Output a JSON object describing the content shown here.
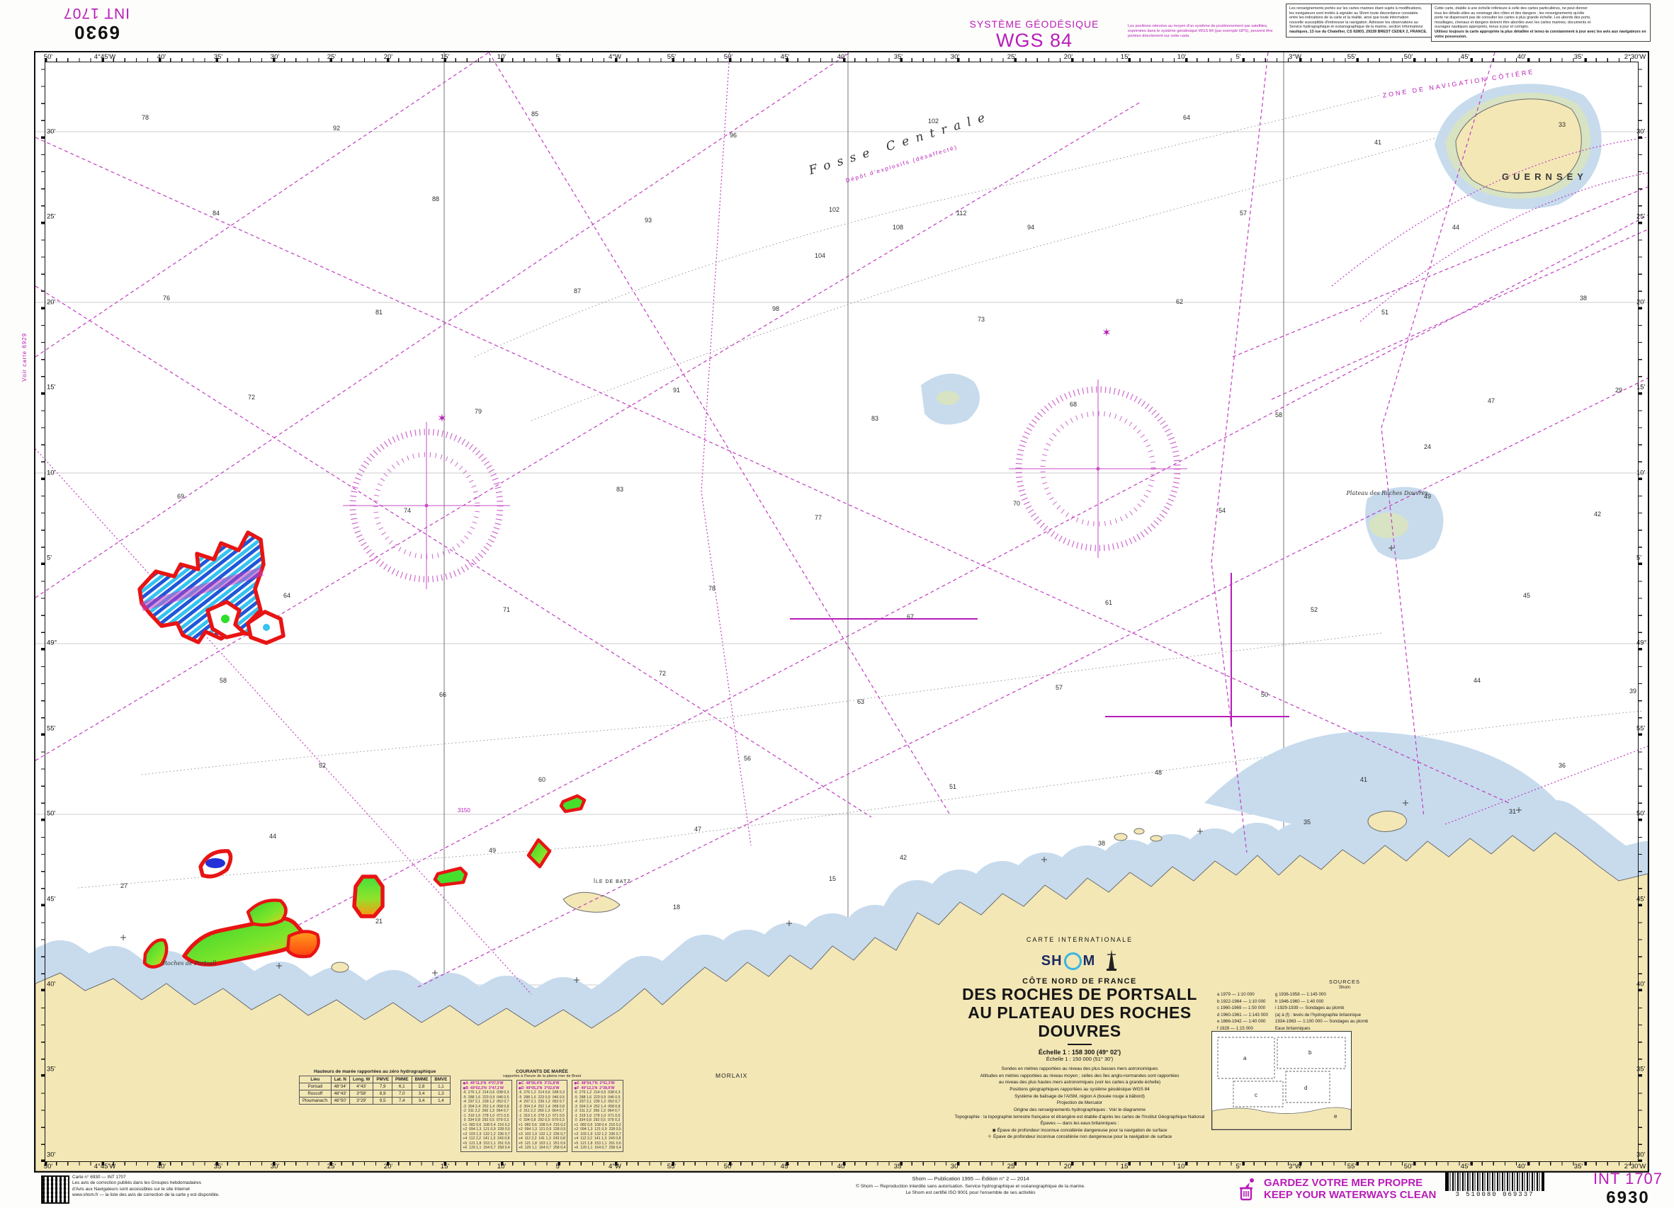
{
  "colors": {
    "magenta": "#b81cb8",
    "land": "#f3e7b6",
    "shallow": "#c7dbed",
    "intertidal": "#d7e3c2",
    "patch_red": "#e81414"
  },
  "sheet": {
    "corner": {
      "number": "6930",
      "int": "INT 1707"
    },
    "geodesy": {
      "label": "SYSTÈME GÉODÉSIQUE",
      "value": "WGS 84",
      "note": "Les positions relevées au moyen d'un système de positionnement par satellites, exprimées dans le système géodésique WGS 84 (par exemple GPS), peuvent être portées directement sur cette carte."
    },
    "margin_note_left": "Voir carte 6929",
    "cautions": {
      "box1": [
        "Les renseignements portés sur les cartes marines étant sujets à modifications,",
        "les navigateurs sont invités à signaler au Shom toute discordance constatée",
        "entre les indications de la carte et la réalité, ainsi que toute information",
        "nouvelle susceptible d'intéresser la navigation. Adresser les observations au",
        "Service hydrographique et océanographique de la marine, section Informations",
        "nautiques, 13 rue du Chatellier, CS 92803, 29228 BREST CEDEX 2, FRANCE."
      ],
      "box2": [
        "Cette carte, établie à une échelle inférieure à celle des cartes particulières, ne peut donner",
        "tous les détails utiles au voisinage des côtes et des dangers ; les renseignements qu'elle",
        "porte ne dispensent pas de consulter les cartes à plus grande échelle. Les abords des ports,",
        "mouillages, chenaux et dangers doivent être abordés avec les cartes marines, documents et",
        "ouvrages nautiques appropriés, tenus à jour et corrigés.",
        "Utilisez toujours la carte appropriée la plus détaillée et tenez-la constamment à jour avec les avis aux navigateurs en votre possession."
      ]
    }
  },
  "borders": {
    "lons": [
      "50'",
      "4°45'W",
      "40'",
      "35'",
      "30'",
      "25'",
      "20'",
      "15'",
      "10'",
      "5'",
      "4°W",
      "55'",
      "50'",
      "45'",
      "40'",
      "35'",
      "30'",
      "25'",
      "20'",
      "15'",
      "10'",
      "5'",
      "3°W",
      "55'",
      "50'",
      "45'",
      "40'",
      "35'",
      "2°30'W"
    ],
    "lats": [
      "30'",
      "25'",
      "20'",
      "15'",
      "10'",
      "5'",
      "49°",
      "55'",
      "50'",
      "45'",
      "40'",
      "35'",
      "30'"
    ]
  },
  "chart": {
    "sea_labels": {
      "fosse": "Fosse Centrale",
      "depot": "Dépôt d'explosifs (désaffecté)",
      "zone": "ZONE DE NAVIGATION CÔTIÈRE",
      "guernsey": "GUERNSEY",
      "batz": "ÎLE DE BATZ",
      "morlaix": "MORLAIX",
      "douvres": "Plateau des Roches Douvres",
      "portsall": "Roches de Portsall",
      "cable": "3150"
    },
    "soundings": [
      [
        150,
        95,
        "78"
      ],
      [
        420,
        110,
        "92"
      ],
      [
        700,
        90,
        "85"
      ],
      [
        980,
        120,
        "96"
      ],
      [
        1260,
        100,
        "102"
      ],
      [
        1620,
        95,
        "64"
      ],
      [
        1890,
        130,
        "41"
      ],
      [
        2150,
        105,
        "33"
      ],
      [
        250,
        230,
        "84"
      ],
      [
        560,
        210,
        "88"
      ],
      [
        860,
        240,
        "93"
      ],
      [
        1120,
        225,
        "102"
      ],
      [
        1400,
        250,
        "94"
      ],
      [
        1700,
        230,
        "57"
      ],
      [
        2000,
        250,
        "44"
      ],
      [
        1210,
        250,
        "108"
      ],
      [
        1300,
        230,
        "112"
      ],
      [
        1100,
        290,
        "104"
      ],
      [
        180,
        350,
        "76"
      ],
      [
        480,
        370,
        "81"
      ],
      [
        760,
        340,
        "87"
      ],
      [
        1040,
        365,
        "98"
      ],
      [
        1330,
        380,
        "73"
      ],
      [
        1610,
        355,
        "62"
      ],
      [
        1900,
        370,
        "51"
      ],
      [
        2180,
        350,
        "38"
      ],
      [
        300,
        490,
        "72"
      ],
      [
        620,
        510,
        "79"
      ],
      [
        900,
        480,
        "91"
      ],
      [
        1180,
        520,
        "83"
      ],
      [
        1460,
        500,
        "68"
      ],
      [
        1750,
        515,
        "58"
      ],
      [
        2050,
        495,
        "47"
      ],
      [
        200,
        630,
        "69"
      ],
      [
        520,
        650,
        "74"
      ],
      [
        820,
        620,
        "83"
      ],
      [
        1100,
        660,
        "77"
      ],
      [
        1380,
        640,
        "70"
      ],
      [
        1670,
        650,
        "54"
      ],
      [
        1960,
        630,
        "49"
      ],
      [
        2200,
        655,
        "42"
      ],
      [
        350,
        770,
        "64"
      ],
      [
        660,
        790,
        "71"
      ],
      [
        950,
        760,
        "78"
      ],
      [
        1230,
        800,
        "67"
      ],
      [
        1510,
        780,
        "61"
      ],
      [
        1800,
        790,
        "52"
      ],
      [
        2100,
        770,
        "45"
      ],
      [
        260,
        890,
        "58"
      ],
      [
        570,
        910,
        "66"
      ],
      [
        880,
        880,
        "72"
      ],
      [
        1160,
        920,
        "63"
      ],
      [
        1440,
        900,
        "57"
      ],
      [
        1730,
        910,
        "50"
      ],
      [
        2030,
        890,
        "44"
      ],
      [
        2250,
        905,
        "39"
      ],
      [
        400,
        1010,
        "52"
      ],
      [
        710,
        1030,
        "60"
      ],
      [
        1000,
        1000,
        "56"
      ],
      [
        1290,
        1040,
        "51"
      ],
      [
        1580,
        1020,
        "48"
      ],
      [
        1870,
        1030,
        "41"
      ],
      [
        2150,
        1010,
        "36"
      ],
      [
        330,
        1110,
        "44"
      ],
      [
        640,
        1130,
        "49"
      ],
      [
        930,
        1100,
        "47"
      ],
      [
        1220,
        1140,
        "42"
      ],
      [
        1500,
        1120,
        "38"
      ],
      [
        1790,
        1090,
        "35"
      ],
      [
        2080,
        1075,
        "31"
      ],
      [
        120,
        1180,
        "27"
      ],
      [
        480,
        1230,
        "21"
      ],
      [
        900,
        1210,
        "18"
      ],
      [
        1120,
        1170,
        "15"
      ],
      [
        1960,
        560,
        "24"
      ],
      [
        2230,
        480,
        "29"
      ]
    ]
  },
  "title_block": {
    "intl": "CARTE INTERNATIONALE",
    "logo_sh": "SH",
    "logo_m": "M",
    "region": "CÔTE NORD DE FRANCE",
    "line1": "DES ROCHES DE PORTSALL",
    "line2": "AU PLATEAU DES ROCHES DOUVRES",
    "scale1": "Échelle 1 : 158 300 (49° 02')",
    "scale2": "Échelle 1 : 150 000 (51° 30')",
    "notes": [
      "Sondes en mètres rapportées au niveau des plus basses mers astronomiques",
      "Altitudes en mètres rapportées au niveau moyen ; celles des îles anglo-normandes sont rapportées",
      "au niveau des plus hautes mers astronomiques (voir les cartes à grande échelle)",
      "Positions géographiques rapportées au système géodésique WGS 84",
      "Système de balisage de l'AISM, région A (bouée rouge à bâbord)",
      "Projection de Mercator",
      "Origine des renseignements hydrographiques : Voir le diagramme",
      "Topographie : la topographie terrestre française et étrangère est établie d'après les cartes de l'Institut Géographique National",
      "Épaves — dans les eaux britanniques :",
      "◉  Épave de profondeur inconnue considérée dangereuse pour la navigation de surface",
      "＋  Épave de profondeur inconnue considérée non dangereuse pour la navigation de surface"
    ]
  },
  "sources": {
    "title": "SOURCES",
    "org": "Shom",
    "col1": [
      "a  1979 — 1:10 000",
      "b  1922-1964 — 1:10 000",
      "c  1960-1969 — 1:50 000",
      "d  1960-1961 — 1:143 000",
      "e  1866-1942 — 1:40 000",
      "f  1929 — 1:15 000"
    ],
    "col2": [
      "g  1936-1958 — 1:145 000",
      "h  1946-1960 — 1:40 000",
      "i  1929-1939 — Sondages au plomb",
      "(a) à (f) : levés de l'hydrographie britannique",
      "1934-1963 — 1:100 000 — Sondages au plomb",
      "Eaux britanniques"
    ],
    "diagram": [
      "a",
      "b",
      "c",
      "d",
      "e"
    ]
  },
  "tides": {
    "title": "Hauteurs de marée rapportées au zéro hydrographique",
    "headers": [
      "Lieu",
      "Lat. N",
      "Long. W",
      "PMVE",
      "PMME",
      "BMME",
      "BMVE"
    ],
    "rows": [
      [
        "Portsall",
        "48°34'",
        "4°43'",
        "7,9",
        "6,1",
        "2,8",
        "1,1"
      ],
      [
        "Roscoff",
        "48°43'",
        "3°58'",
        "8,9",
        "7,0",
        "3,4",
        "1,3"
      ],
      [
        "Ploumanac'h",
        "48°50'",
        "3°29'",
        "9,5",
        "7,4",
        "3,4",
        "1,4"
      ]
    ]
  },
  "currents": {
    "title": "COURANTS DE MARÉE",
    "sub": "rapportés à l'heure de la pleine mer de Brest",
    "tables": [
      {
        "stations": [
          "◆A  49°11,0'N  4°07,5'W",
          "◆B  49°02,3'N  3°47,1'W"
        ]
      },
      {
        "stations": [
          "◆C  48°56,4'N  3°21,8'W",
          "◆D  49°05,2'N  3°02,6'W"
        ]
      },
      {
        "stations": [
          "◆E  48°54,7'N  2°51,3'W",
          "◆F  49°12,1'N  2°38,9'W"
        ]
      }
    ],
    "rows": [
      "-6  276 1,2  214 0,6  038 0,3",
      "-5  288 1,6  223 0,9  046 0,5",
      "-4  297 2,1  239 1,2  052 0,7",
      "-3  304 2,4  252 1,4  058 0,8",
      "-2  311 2,2  266 1,3  064 0,7",
      "-1  319 1,6  278 1,0  071 0,5",
      " 0  334 0,8  292 0,5  079 0,3",
      "+1  082 0,6  108 0,4  216 0,2",
      "+2  094 1,3  121 0,9  228 0,5",
      "+3  103 1,9  132 1,2  236 0,7",
      "+4  112 2,2  141 1,3  243 0,8",
      "+5  121 1,8  153 1,1  251 0,6",
      "+6  129 1,1  164 0,7  258 0,4"
    ]
  },
  "footer": {
    "qr_note": [
      "Carte n° 6930 — INT 1707",
      "Les avis de correction publiés dans les Groupes hebdomadaires",
      "d'Avis aux Navigateurs sont accessibles sur le site Internet",
      "www.shom.fr — la liste des avis de correction de la carte y est disponible."
    ],
    "publication": [
      "Shom — Publication 1995 — Édition n° 2 — 2014",
      "© Shom — Reproduction interdite sans autorisation. Service hydrographique et océanographique de la marine.",
      "Le Shom est certifié ISO 9001 pour l'ensemble de ses activités"
    ],
    "keep_clean_fr": "GARDEZ VOTRE MER PROPRE",
    "keep_clean_en": "KEEP YOUR WATERWAYS CLEAN",
    "barcode": "3 510080 069337",
    "int_number": "INT 1707",
    "chart_number": "6930"
  }
}
